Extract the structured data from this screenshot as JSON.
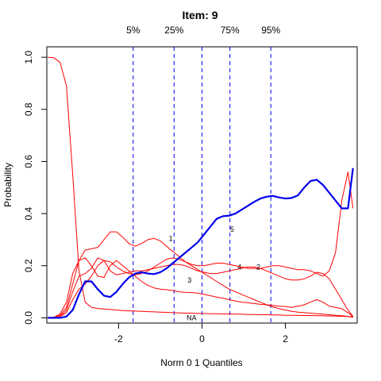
{
  "chart_data": {
    "type": "line",
    "title": "Item:  9",
    "xlabel": "Norm 0 1 Quantiles",
    "ylabel": "Probability",
    "xlim": [
      -3.72,
      3.72
    ],
    "ylim": [
      -0.02,
      1.04
    ],
    "xticks": [
      -2,
      0,
      2
    ],
    "xtick_labels": [
      "-2",
      "0",
      "2"
    ],
    "yticks": [
      0.0,
      0.2,
      0.4,
      0.6,
      0.8,
      1.0
    ],
    "ytick_labels": [
      "0.0",
      "0.2",
      "0.4",
      "0.6",
      "0.8",
      "1.0"
    ],
    "grid": false,
    "quantile_lines": [
      {
        "label": "5%",
        "x": -1.65
      },
      {
        "label": "25%",
        "x": -0.67
      },
      {
        "label": "",
        "x": 0.0
      },
      {
        "label": "75%",
        "x": 0.67
      },
      {
        "label": "95%",
        "x": 1.65
      }
    ],
    "x": [
      -3.7,
      -3.55,
      -3.4,
      -3.25,
      -3.1,
      -2.95,
      -2.8,
      -2.65,
      -2.5,
      -2.35,
      -2.2,
      -2.05,
      -1.9,
      -1.75,
      -1.6,
      -1.45,
      -1.3,
      -1.15,
      -1.0,
      -0.85,
      -0.7,
      -0.55,
      -0.4,
      -0.25,
      -0.1,
      0.05,
      0.2,
      0.35,
      0.5,
      0.65,
      0.8,
      0.95,
      1.1,
      1.25,
      1.4,
      1.55,
      1.7,
      1.85,
      2.0,
      2.15,
      2.3,
      2.45,
      2.6,
      2.75,
      2.9,
      3.05,
      3.2,
      3.35,
      3.5,
      3.62
    ],
    "series": [
      {
        "name": "NA",
        "color": "#ff0000",
        "width": 1,
        "label_at": [
          -0.25,
          0.0
        ],
        "values": [
          1.0,
          0.998,
          0.98,
          0.89,
          0.55,
          0.18,
          0.06,
          0.04,
          0.036,
          0.034,
          0.032,
          0.03,
          0.028,
          0.027,
          0.026,
          0.025,
          0.024,
          0.023,
          0.022,
          0.021,
          0.02,
          0.019,
          0.018,
          0.018,
          0.017,
          0.017,
          0.016,
          0.016,
          0.015,
          0.015,
          0.014,
          0.014,
          0.013,
          0.013,
          0.012,
          0.012,
          0.011,
          0.011,
          0.01,
          0.01,
          0.01,
          0.009,
          0.009,
          0.008,
          0.008,
          0.007,
          0.007,
          0.006,
          0.005,
          0.004
        ]
      },
      {
        "name": "1",
        "color": "#ff0000",
        "width": 1,
        "label_at": [
          -0.75,
          0.305
        ],
        "values": [
          0.0,
          0.002,
          0.01,
          0.04,
          0.13,
          0.22,
          0.26,
          0.265,
          0.27,
          0.3,
          0.33,
          0.33,
          0.31,
          0.285,
          0.275,
          0.285,
          0.3,
          0.305,
          0.295,
          0.275,
          0.255,
          0.235,
          0.215,
          0.2,
          0.185,
          0.17,
          0.155,
          0.14,
          0.125,
          0.11,
          0.1,
          0.09,
          0.08,
          0.07,
          0.06,
          0.05,
          0.042,
          0.035,
          0.03,
          0.025,
          0.022,
          0.02,
          0.018,
          0.016,
          0.014,
          0.012,
          0.01,
          0.008,
          0.005,
          0.002
        ]
      },
      {
        "name": "3",
        "color": "#ff0000",
        "width": 1,
        "label_at": [
          -0.3,
          0.145
        ],
        "values": [
          0.0,
          0.002,
          0.015,
          0.06,
          0.17,
          0.22,
          0.23,
          0.2,
          0.16,
          0.155,
          0.2,
          0.22,
          0.2,
          0.18,
          0.16,
          0.14,
          0.125,
          0.115,
          0.11,
          0.108,
          0.105,
          0.1,
          0.098,
          0.097,
          0.095,
          0.09,
          0.085,
          0.08,
          0.075,
          0.07,
          0.065,
          0.06,
          0.058,
          0.055,
          0.052,
          0.05,
          0.048,
          0.045,
          0.043,
          0.04,
          0.045,
          0.05,
          0.06,
          0.07,
          0.06,
          0.045,
          0.04,
          0.035,
          0.02,
          0.005
        ]
      },
      {
        "name": "4",
        "color": "#ff0000",
        "width": 1,
        "label_at": [
          0.9,
          0.195
        ],
        "values": [
          0.0,
          0.0,
          0.005,
          0.03,
          0.1,
          0.16,
          0.17,
          0.19,
          0.23,
          0.22,
          0.18,
          0.165,
          0.17,
          0.175,
          0.18,
          0.18,
          0.185,
          0.19,
          0.195,
          0.2,
          0.205,
          0.205,
          0.2,
          0.19,
          0.18,
          0.175,
          0.17,
          0.17,
          0.175,
          0.18,
          0.185,
          0.19,
          0.195,
          0.195,
          0.19,
          0.18,
          0.17,
          0.16,
          0.15,
          0.145,
          0.145,
          0.15,
          0.16,
          0.175,
          0.17,
          0.15,
          0.11,
          0.07,
          0.03,
          0.005
        ]
      },
      {
        "name": "2",
        "color": "#ff0000",
        "width": 1,
        "label_at": [
          1.35,
          0.195
        ],
        "values": [
          0.0,
          0.0,
          0.005,
          0.02,
          0.07,
          0.11,
          0.13,
          0.16,
          0.2,
          0.22,
          0.215,
          0.195,
          0.18,
          0.17,
          0.165,
          0.17,
          0.18,
          0.195,
          0.21,
          0.225,
          0.23,
          0.225,
          0.215,
          0.205,
          0.2,
          0.2,
          0.205,
          0.21,
          0.21,
          0.205,
          0.2,
          0.195,
          0.19,
          0.19,
          0.19,
          0.195,
          0.2,
          0.2,
          0.195,
          0.19,
          0.185,
          0.185,
          0.18,
          0.17,
          0.16,
          0.18,
          0.25,
          0.45,
          0.56,
          0.42
        ]
      },
      {
        "name": "5",
        "color": "#0000ee",
        "width": 2.2,
        "label_at": [
          0.72,
          0.34
        ],
        "values": [
          0.0,
          0.0,
          0.0,
          0.005,
          0.03,
          0.09,
          0.14,
          0.14,
          0.11,
          0.085,
          0.08,
          0.1,
          0.13,
          0.155,
          0.17,
          0.175,
          0.17,
          0.168,
          0.175,
          0.19,
          0.21,
          0.23,
          0.25,
          0.27,
          0.29,
          0.32,
          0.35,
          0.38,
          0.39,
          0.392,
          0.4,
          0.415,
          0.43,
          0.445,
          0.458,
          0.465,
          0.468,
          0.462,
          0.458,
          0.46,
          0.47,
          0.5,
          0.525,
          0.53,
          0.51,
          0.48,
          0.45,
          0.42,
          0.42,
          0.575
        ]
      }
    ]
  }
}
